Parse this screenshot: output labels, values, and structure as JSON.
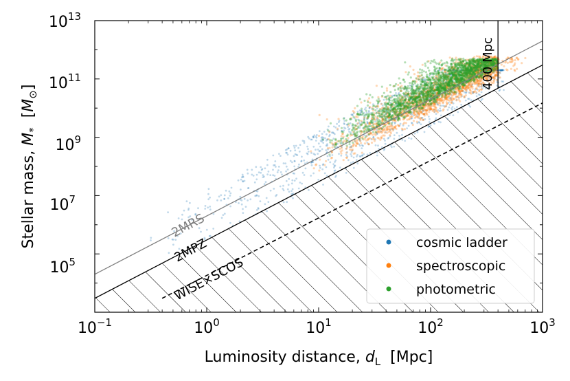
{
  "chart_data": {
    "type": "scatter",
    "xscale": "log",
    "yscale": "log",
    "xlim": [
      0.1,
      1000
    ],
    "ylim": [
      1000,
      10000000000000
    ],
    "x_tick_labels": [
      {
        "base": "10",
        "exp": "−1",
        "x": 0.1
      },
      {
        "base": "10",
        "exp": "0",
        "x": 1
      },
      {
        "base": "10",
        "exp": "1",
        "x": 10
      },
      {
        "base": "10",
        "exp": "2",
        "x": 100
      },
      {
        "base": "10",
        "exp": "3",
        "x": 1000
      }
    ],
    "y_tick_labels": [
      {
        "base": "10",
        "exp": "5",
        "y": 100000
      },
      {
        "base": "10",
        "exp": "7",
        "y": 10000000
      },
      {
        "base": "10",
        "exp": "9",
        "y": 1000000000
      },
      {
        "base": "10",
        "exp": "11",
        "y": 100000000000
      },
      {
        "base": "10",
        "exp": "13",
        "y": 10000000000000
      }
    ],
    "xlabel": {
      "main": "Luminosity distance, ",
      "symbol": "d",
      "sub": "L",
      "unit": "  [Mpc]"
    },
    "ylabel": {
      "main": "Stellar mass, ",
      "symbol": "M",
      "sub": "*",
      "unit": "  [",
      "unit_symbol": "M",
      "unit_sub": "⊙",
      "unit_close": "]"
    },
    "legend": {
      "placement": "lower-right",
      "entries": [
        {
          "label": "cosmic ladder",
          "color": "#1f77b4"
        },
        {
          "label": "spectroscopic",
          "color": "#ff7f0e"
        },
        {
          "label": "photometric",
          "color": "#2ca02c"
        }
      ]
    },
    "series": [
      {
        "name": "cosmic ladder",
        "color": "#1f77b4",
        "x_range": [
          0.3,
          450
        ],
        "y_range": [
          30000,
          200000000000
        ]
      },
      {
        "name": "spectroscopic",
        "color": "#ff7f0e",
        "x_range": [
          8,
          800
        ],
        "y_range": [
          1000000,
          600000000000
        ]
      },
      {
        "name": "photometric",
        "color": "#2ca02c",
        "x_range": [
          10,
          400
        ],
        "y_range": [
          10000000,
          500000000000
        ]
      }
    ],
    "reference_lines": [
      {
        "label": "2MRS",
        "color": "#808080",
        "style": "solid",
        "points": [
          [
            0.1,
            20000
          ],
          [
            1000,
            2000000000000
          ]
        ]
      },
      {
        "label": "2MPZ",
        "color": "#000000",
        "style": "solid",
        "points": [
          [
            0.1,
            3000
          ],
          [
            1000,
            300000000000
          ]
        ]
      },
      {
        "label": "WISE×SCOS",
        "color": "#000000",
        "style": "dashed",
        "points": [
          [
            0.4,
            3000
          ],
          [
            1000,
            15000000000
          ]
        ]
      }
    ],
    "vertical_line": {
      "label": "400 Mpc",
      "x": 400
    },
    "hatched_region": "below 2MPZ line, to x = 400 Mpc"
  }
}
